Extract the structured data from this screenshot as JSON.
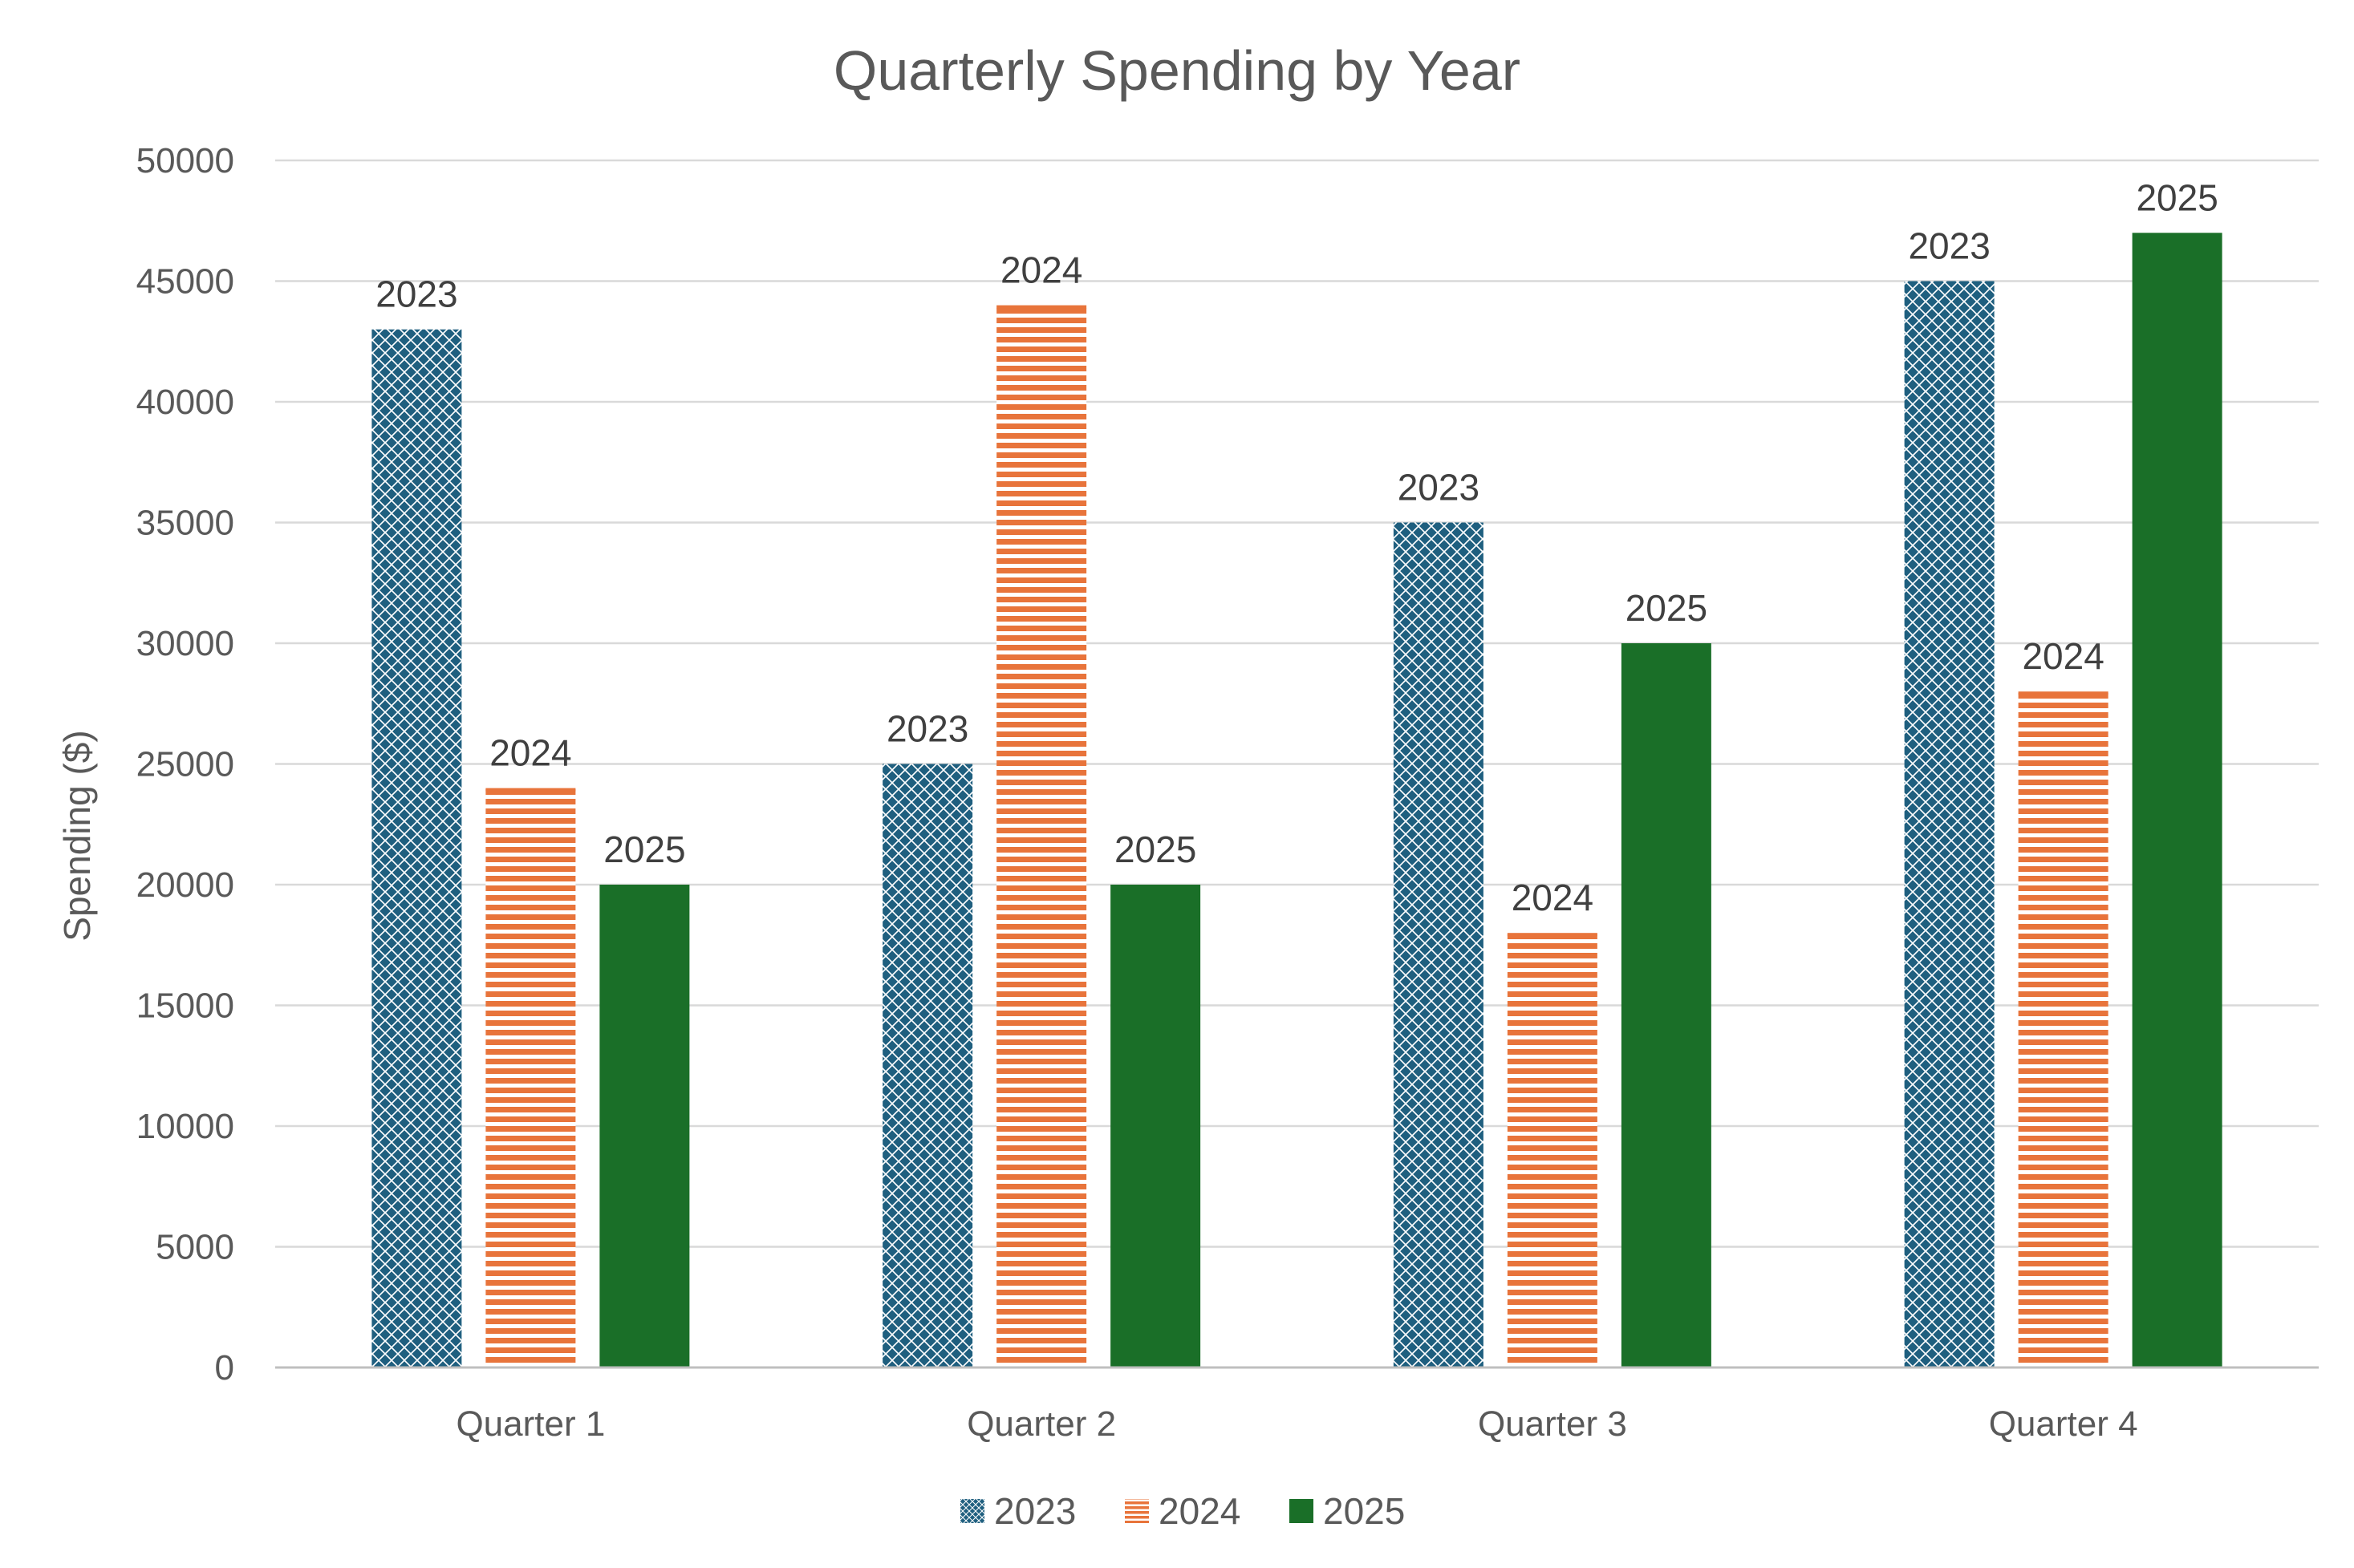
{
  "chart_data": {
    "type": "bar",
    "title": "Quarterly Spending by Year",
    "xlabel": "",
    "ylabel": "Spending ($)",
    "ylim": [
      0,
      50000
    ],
    "yticks": [
      "0",
      "5000",
      "10000",
      "15000",
      "20000",
      "25000",
      "30000",
      "35000",
      "40000",
      "45000",
      "50000"
    ],
    "categories": [
      "Quarter 1",
      "Quarter 2",
      "Quarter 3",
      "Quarter 4"
    ],
    "series": [
      {
        "name": "2023",
        "values": [
          43000,
          25000,
          35000,
          45000
        ],
        "color": "#1f5f7f",
        "pattern": "crosshatch"
      },
      {
        "name": "2024",
        "values": [
          24000,
          44000,
          18000,
          28000
        ],
        "color": "#e8743b",
        "pattern": "horizontal-stripes"
      },
      {
        "name": "2025",
        "values": [
          20000,
          20000,
          30000,
          47000
        ],
        "color": "#1a6f28",
        "pattern": "solid"
      }
    ],
    "data_labels": "series-name",
    "grid": true,
    "legend": "bottom"
  }
}
